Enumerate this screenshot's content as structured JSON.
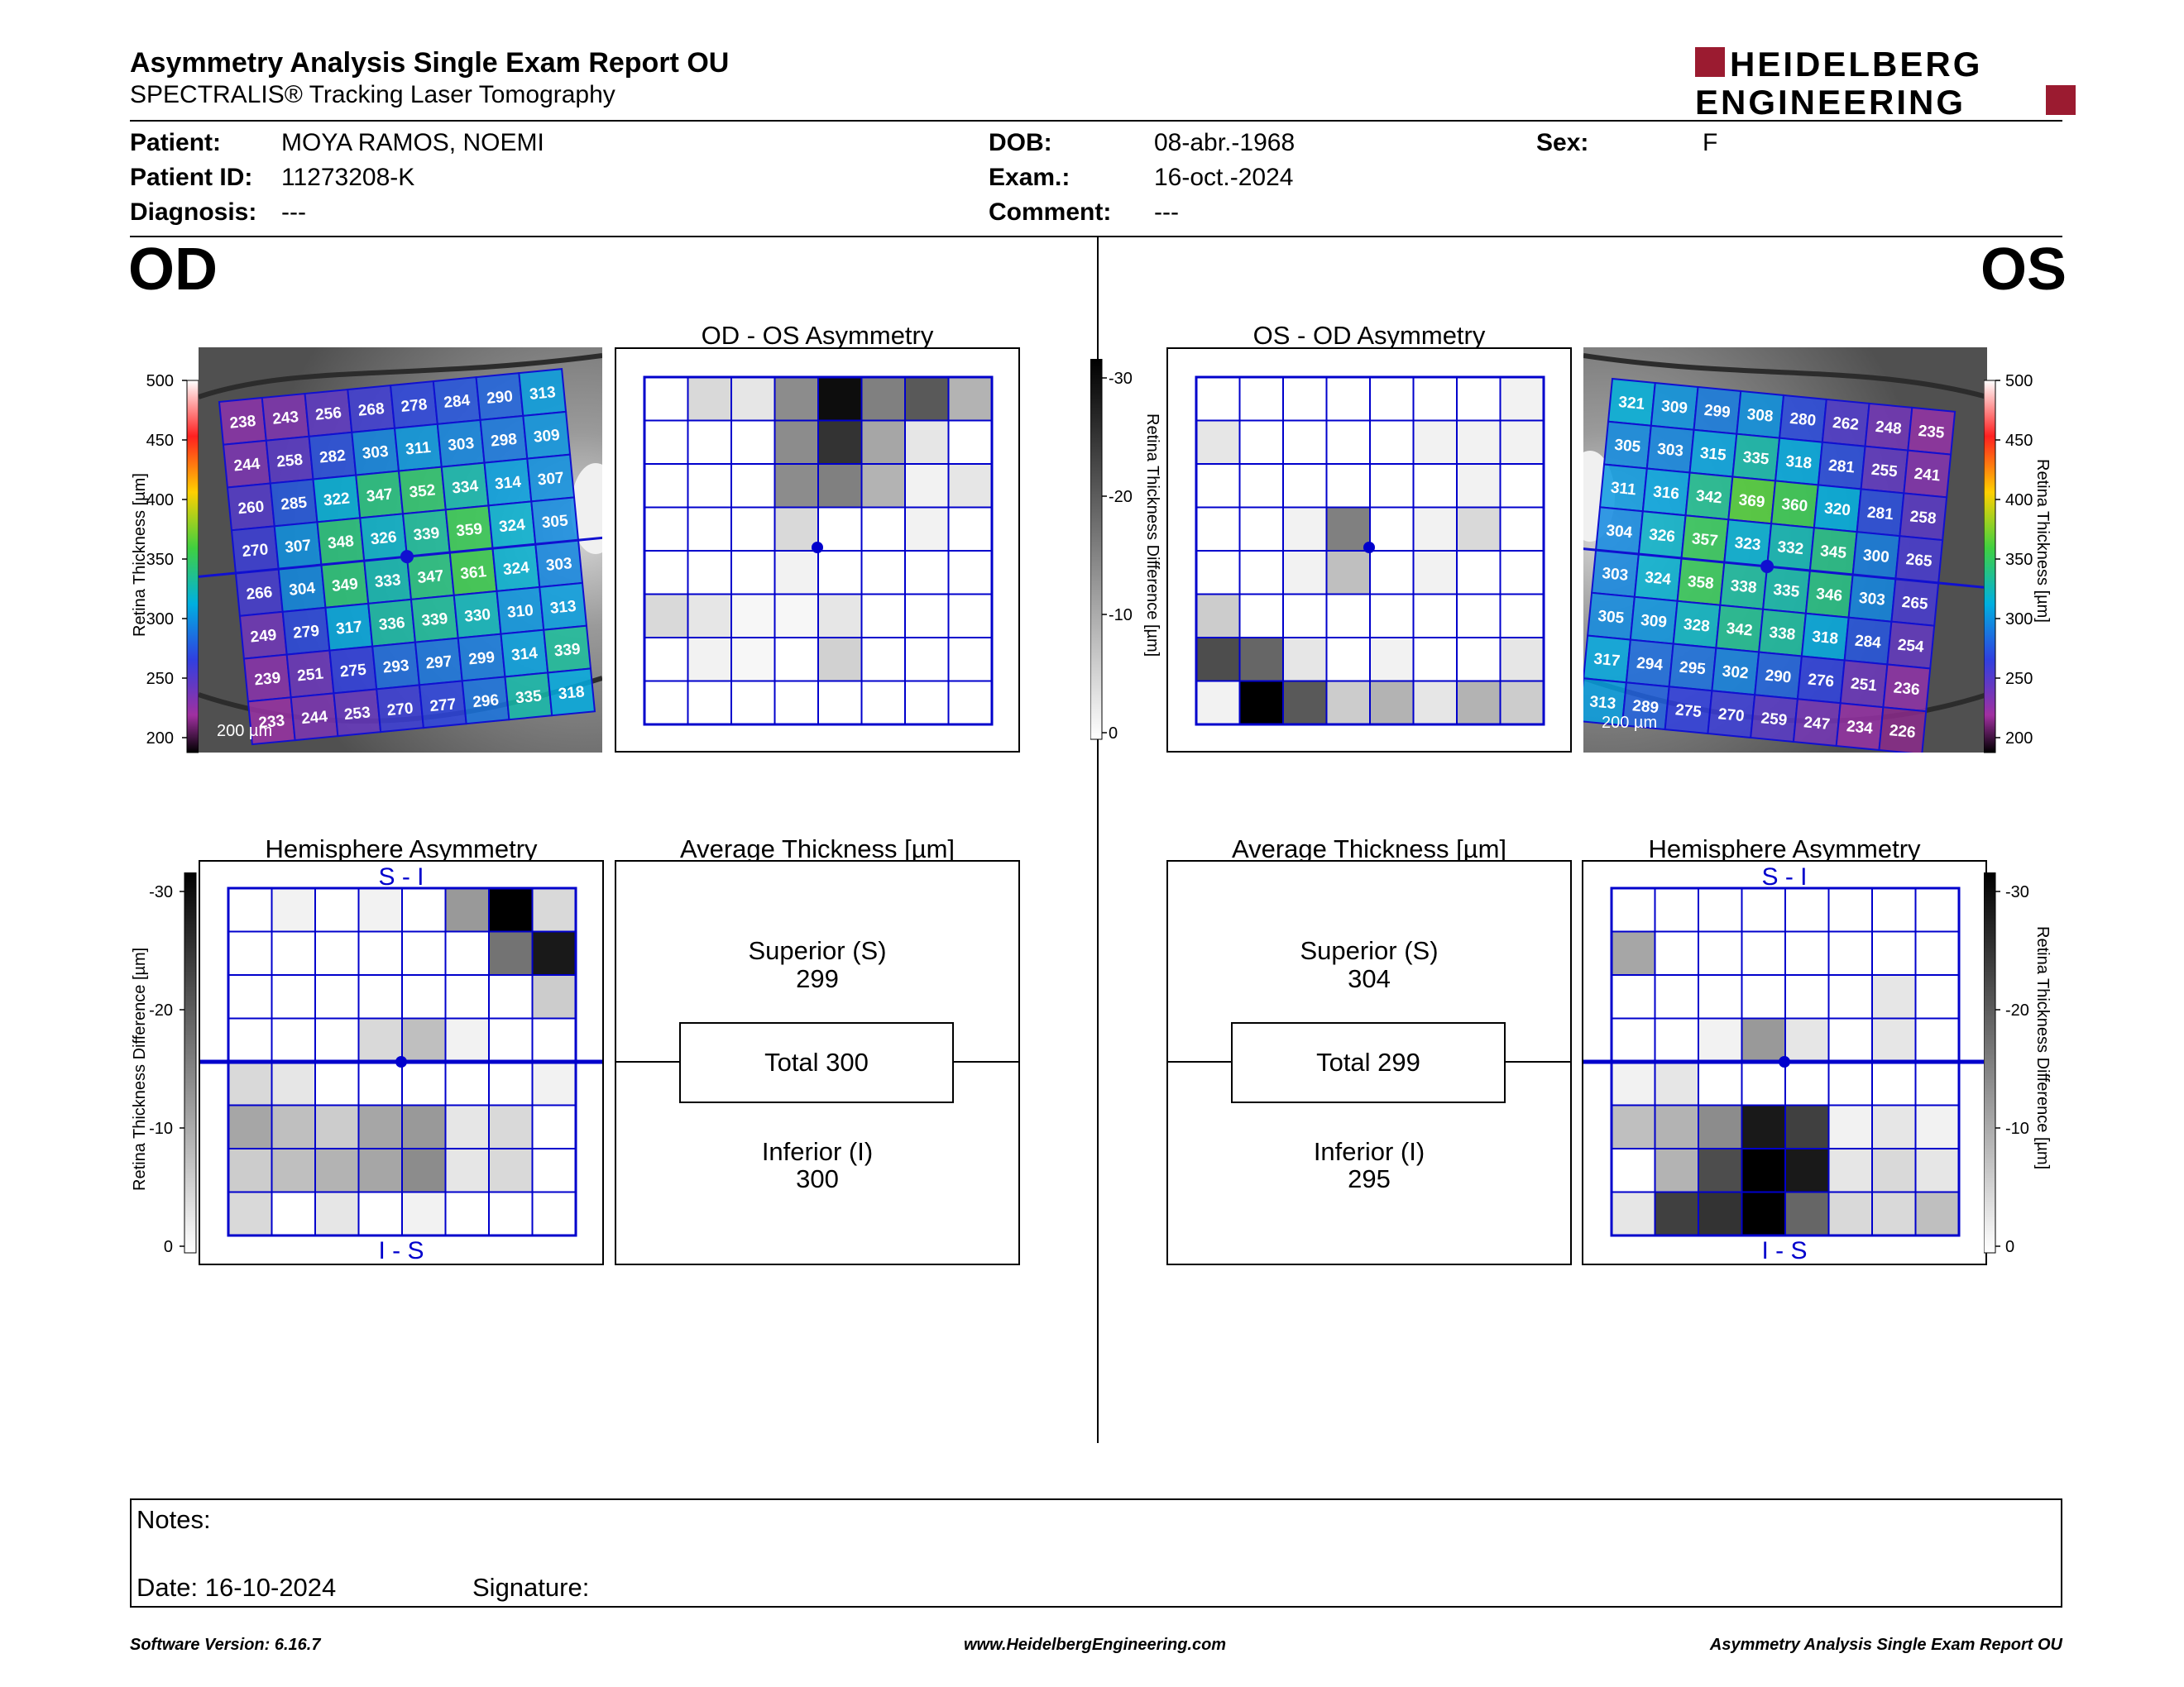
{
  "header": {
    "title": "Asymmetry Analysis Single Exam Report OU",
    "subtitle": "SPECTRALIS® Tracking Laser Tomography",
    "logo_line1": "HEIDELBERG",
    "logo_line2": "ENGINEERING"
  },
  "patient": {
    "patient_label": "Patient:",
    "patient_value": "MOYA RAMOS, NOEMI",
    "id_label": "Patient ID:",
    "id_value": "11273208-K",
    "diagnosis_label": "Diagnosis:",
    "diagnosis_value": "---",
    "dob_label": "DOB:",
    "dob_value": "08-abr.-1968",
    "exam_label": "Exam.:",
    "exam_value": "16-oct.-2024",
    "comment_label": "Comment:",
    "comment_value": "---",
    "sex_label": "Sex:",
    "sex_value": "F"
  },
  "od": {
    "eye_label": "OD",
    "asym_title": "OD - OS Asymmetry",
    "hemi_title": "Hemisphere Asymmetry",
    "avg_title": "Average Thickness [µm]",
    "superior_label": "Superior (S)",
    "superior_value": "299",
    "total_label": "Total 300",
    "inferior_label": "Inferior (I)",
    "inferior_value": "300",
    "hemi_top": "S - I",
    "hemi_bottom": "I - S",
    "scale_text": "200 µm",
    "thickness_grid": [
      [
        238,
        243,
        256,
        268,
        278,
        284,
        290,
        313
      ],
      [
        244,
        258,
        282,
        303,
        311,
        303,
        298,
        309
      ],
      [
        260,
        285,
        322,
        347,
        352,
        334,
        314,
        307
      ],
      [
        270,
        307,
        348,
        326,
        339,
        359,
        324,
        305
      ],
      [
        266,
        304,
        349,
        333,
        347,
        361,
        324,
        303
      ],
      [
        249,
        279,
        317,
        336,
        339,
        330,
        310,
        313
      ],
      [
        239,
        251,
        275,
        293,
        297,
        299,
        314,
        339
      ],
      [
        233,
        244,
        253,
        270,
        277,
        296,
        335,
        318
      ]
    ],
    "asym_grid": [
      [
        0,
        0.15,
        0.1,
        0.45,
        0.95,
        0.5,
        0.65,
        0.3
      ],
      [
        0,
        0,
        0,
        0.45,
        0.8,
        0.35,
        0.1,
        0
      ],
      [
        0,
        0,
        0,
        0.45,
        0.5,
        0.3,
        0.05,
        0.1
      ],
      [
        0,
        0,
        0,
        0.15,
        0,
        0,
        0.05,
        0
      ],
      [
        0,
        0,
        0,
        0.05,
        0,
        0,
        0,
        0
      ],
      [
        0.15,
        0.1,
        0.03,
        0.03,
        0.1,
        0,
        0,
        0
      ],
      [
        0,
        0.05,
        0.03,
        0,
        0.18,
        0,
        0,
        0
      ],
      [
        0,
        0,
        0,
        0,
        0,
        0,
        0,
        0
      ]
    ],
    "hemi_grid": [
      [
        0,
        0.05,
        0,
        0.05,
        0,
        0.4,
        1,
        0.15
      ],
      [
        0,
        0,
        0,
        0,
        0,
        0,
        0.55,
        0.9
      ],
      [
        0,
        0,
        0,
        0,
        0,
        0,
        0,
        0.2
      ],
      [
        0,
        0,
        0,
        0.15,
        0.25,
        0.05,
        0,
        0
      ],
      [
        0.15,
        0.1,
        0,
        0,
        0,
        0,
        0,
        0.05
      ],
      [
        0.35,
        0.25,
        0.2,
        0.35,
        0.4,
        0.1,
        0.15,
        0
      ],
      [
        0.2,
        0.25,
        0.3,
        0.35,
        0.45,
        0.1,
        0.15,
        0
      ],
      [
        0.15,
        0,
        0.1,
        0,
        0.05,
        0,
        0,
        0
      ]
    ]
  },
  "os": {
    "eye_label": "OS",
    "asym_title": "OS - OD Asymmetry",
    "hemi_title": "Hemisphere Asymmetry",
    "avg_title": "Average Thickness [µm]",
    "superior_label": "Superior (S)",
    "superior_value": "304",
    "total_label": "Total 299",
    "inferior_label": "Inferior (I)",
    "inferior_value": "295",
    "hemi_top": "S - I",
    "hemi_bottom": "I - S",
    "scale_text": "200 µm",
    "thickness_grid": [
      [
        321,
        309,
        299,
        308,
        280,
        262,
        248,
        235
      ],
      [
        305,
        303,
        315,
        335,
        318,
        281,
        255,
        241
      ],
      [
        311,
        316,
        342,
        369,
        360,
        320,
        281,
        258
      ],
      [
        304,
        326,
        357,
        323,
        332,
        345,
        300,
        265
      ],
      [
        303,
        324,
        358,
        338,
        335,
        346,
        303,
        265
      ],
      [
        305,
        309,
        328,
        342,
        338,
        318,
        284,
        254
      ],
      [
        317,
        294,
        295,
        302,
        290,
        276,
        251,
        236
      ],
      [
        313,
        289,
        275,
        270,
        259,
        247,
        234,
        226
      ]
    ],
    "asym_grid": [
      [
        0,
        0,
        0,
        0,
        0,
        0,
        0,
        0.05
      ],
      [
        0.1,
        0,
        0,
        0,
        0,
        0.05,
        0.05,
        0.05
      ],
      [
        0,
        0,
        0,
        0,
        0,
        0,
        0.05,
        0
      ],
      [
        0,
        0,
        0.05,
        0.5,
        0,
        0.05,
        0.15,
        0
      ],
      [
        0,
        0,
        0.05,
        0.25,
        0,
        0.05,
        0,
        0
      ],
      [
        0.2,
        0,
        0,
        0,
        0,
        0,
        0,
        0
      ],
      [
        0.7,
        0.6,
        0.1,
        0,
        0.05,
        0,
        0,
        0.1
      ],
      [
        0.05,
        1,
        0.65,
        0.2,
        0.3,
        0.1,
        0.3,
        0.2
      ]
    ],
    "hemi_grid": [
      [
        0,
        0,
        0,
        0,
        0,
        0,
        0,
        0
      ],
      [
        0.35,
        0,
        0,
        0,
        0,
        0,
        0,
        0
      ],
      [
        0,
        0,
        0,
        0,
        0,
        0,
        0.1,
        0
      ],
      [
        0,
        0,
        0.05,
        0.4,
        0.1,
        0,
        0.1,
        0
      ],
      [
        0.05,
        0.1,
        0,
        0,
        0,
        0,
        0,
        0
      ],
      [
        0.25,
        0.3,
        0.45,
        0.9,
        0.75,
        0.05,
        0.1,
        0.05
      ],
      [
        0,
        0.3,
        0.7,
        1,
        0.9,
        0.1,
        0.15,
        0.1
      ],
      [
        0.1,
        0.75,
        0.8,
        1,
        0.6,
        0.15,
        0.15,
        0.25
      ]
    ]
  },
  "scales": {
    "thickness_label": "Retina Thickness [µm]",
    "thickness_ticks": [
      "500",
      "450",
      "400",
      "350",
      "300",
      "250",
      "200"
    ],
    "diff_label": "Retina Thickness Difference [µm]",
    "diff_ticks": [
      "-30",
      "-20",
      "-10",
      "0"
    ]
  },
  "notes": {
    "notes_label": "Notes:",
    "date_label": "Date: 16-10-2024",
    "signature_label": "Signature:"
  },
  "footer": {
    "software": "Software Version: 6.16.7",
    "url": "www.HeidelbergEngineering.com",
    "report": "Asymmetry Analysis Single Exam Report OU"
  },
  "colors": {
    "grid_blue": "#0000cc",
    "logo_red": "#9b1b30"
  }
}
